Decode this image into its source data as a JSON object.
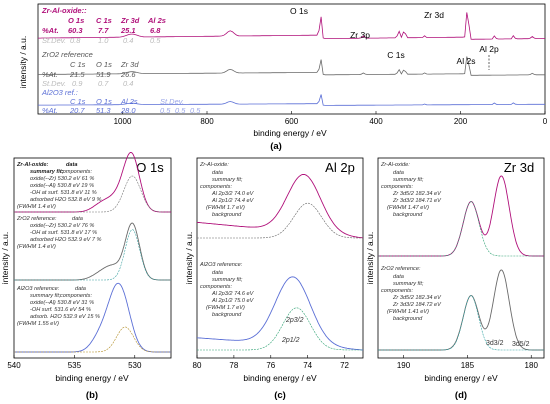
{
  "chart_data": [
    {
      "id": "a",
      "type": "line",
      "panel_label": "(a)",
      "xlabel": "binding energy / eV",
      "ylabel": "intensity / a.u.",
      "xlim": [
        1200,
        0
      ],
      "xticks": [
        "1000",
        "800",
        "600",
        "400",
        "200",
        "0"
      ],
      "series_colors": [
        "#b0107a",
        "#6a6a6a",
        "#5b6fd6"
      ],
      "annotations": [
        "O 1s",
        "Zr 3p",
        "C 1s",
        "Zr 3d",
        "Al 2s",
        "Al 2p"
      ],
      "tables": [
        {
          "title": "Zr-Al-oxide::",
          "headers": [
            "O 1s",
            "C 1s",
            "Zr 3d",
            "Al 2s"
          ],
          "at": [
            "60.3",
            "7.7",
            "25.1",
            "6.8"
          ],
          "sd": [
            "0.8",
            "1.0",
            "0.4",
            "0.5"
          ],
          "color": "#b0107a",
          "bold": true
        },
        {
          "title": "ZrO2 reference",
          "headers": [
            "C 1s",
            "O 1s",
            "Zr 3d"
          ],
          "at": [
            "21.5",
            "51.9",
            "26.6"
          ],
          "sd": [
            "0.9",
            "0.7",
            "0.4"
          ],
          "color": "#555555",
          "bold": false
        },
        {
          "title": "Al2O3 ref.:",
          "headers": [
            "C 1s",
            "O 1s",
            "Al 2s"
          ],
          "at": [
            "20.7",
            "51.3",
            "28.0"
          ],
          "sd": [
            "0.5",
            "0.5",
            "0.5"
          ],
          "color": "#5b6fd6",
          "bold": false
        }
      ],
      "row_labels": {
        "at": "%At.",
        "sd": "St.Dev."
      }
    },
    {
      "id": "b",
      "type": "line",
      "panel_label": "(b)",
      "title": "O 1s",
      "xlabel": "binding energy / eV",
      "ylabel": "intensity / a.u.",
      "xlim": [
        540,
        527
      ],
      "xticks": [
        "540",
        "535",
        "530"
      ],
      "groups": [
        {
          "title": "Zr-Al-oxide:",
          "items": [
            "summary fit;",
            "oxide(--Zr)  530.2 eV   61 %",
            "oxide(--Al)  530.8 eV   19 %",
            "-OH at surf.  531.8 eV   11 %",
            "adsorbed H2O 532.8 eV   9 %",
            "(FWHM 1.4 eV)"
          ],
          "data_label": "data",
          "components_label": "components:",
          "color": "#b0107a"
        },
        {
          "title": "ZrO2 reference:",
          "items": [
            "oxide(--Zr)  530.2 eV   76 %",
            "-OH at surf.  531.8 eV   17 %",
            "adsorbed H2O 532.9 eV   7 %",
            "(FWHM 1.4 eV)"
          ],
          "data_label": "data",
          "color": "#6a6a6a"
        },
        {
          "title": "Al2O3 reference:",
          "items": [
            "summary fit;",
            "oxide(--Al)  530.8 eV   31 %",
            "-OH surf.  531.6 eV   54 %",
            "adsorb. H2O  532.9 eV   15 %",
            "(FWHM 1.55 eV)"
          ],
          "data_label": "data",
          "components_label": "components:",
          "color": "#5b6fd6"
        }
      ]
    },
    {
      "id": "c",
      "type": "line",
      "panel_label": "(c)",
      "title": "Al 2p",
      "xlabel": "binding energy / eV",
      "ylabel": "intensity / a.u.",
      "xlim": [
        80,
        71
      ],
      "xticks": [
        "80",
        "78",
        "76",
        "74",
        "72"
      ],
      "groups": [
        {
          "title": "Zr-Al-oxide:",
          "data_label": "data",
          "fit_label": "summary fit;",
          "components_label": "components:",
          "items": [
            "Al 2p3/2  74.0 eV",
            "Al 2p1/2  74.4 eV",
            "(FWHM 1.7 eV)"
          ],
          "background_label": "background",
          "color": "#b0107a"
        },
        {
          "title": "Al2O3 reference:",
          "data_label": "data",
          "fit_label": "summary fit;",
          "components_label": "components:",
          "items": [
            "Al 2p3/2  74.6 eV",
            "Al 2p1/2  75.0 eV",
            "(FWHM 1.7 eV)"
          ],
          "background_label": "background",
          "color": "#5b6fd6"
        }
      ],
      "peak_labels": [
        "2p3/2",
        "2p1/2"
      ]
    },
    {
      "id": "d",
      "type": "line",
      "panel_label": "(d)",
      "title": "Zr 3d",
      "xlabel": "binding energy / eV",
      "ylabel": "intensity / a.u.",
      "xlim": [
        192,
        179
      ],
      "xticks": [
        "190",
        "185",
        "180"
      ],
      "groups": [
        {
          "title": "Zr-Al-oxide:",
          "data_label": "data",
          "fit_label": "summary fit;",
          "components_label": "components:",
          "items": [
            "Zr 3d5/2  182.34 eV",
            "Zr 3d3/2  184.71 eV",
            "(FWHM 1.47 eV)"
          ],
          "background_label": "background",
          "color": "#b0107a"
        },
        {
          "title": "ZrO2 reference:",
          "data_label": "data",
          "fit_label": "summary fit;",
          "components_label": "components:",
          "items": [
            "Zr 3d5/2  182.34 eV",
            "Zr 3d3/2  184.72 eV",
            "(FWHM 1.41 eV)"
          ],
          "background_label": "background",
          "color": "#6a6a6a"
        }
      ],
      "peak_labels": [
        "3d3/2",
        "3d5/2"
      ]
    }
  ]
}
